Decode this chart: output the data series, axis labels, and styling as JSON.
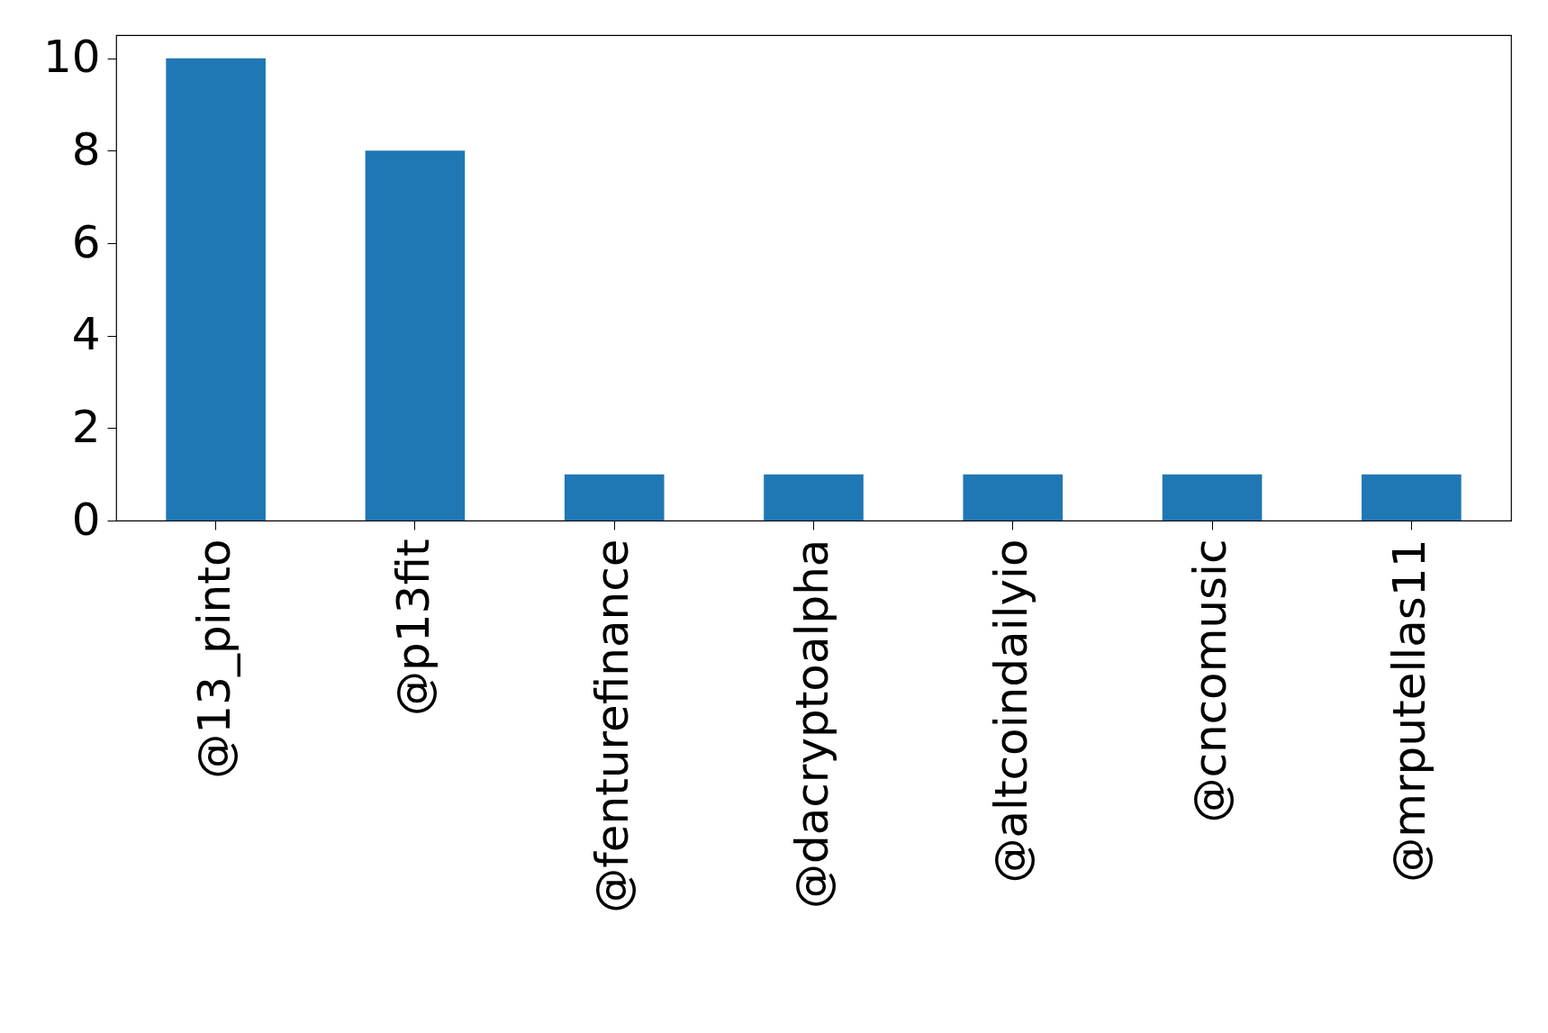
{
  "chart_data": {
    "type": "bar",
    "categories": [
      "@13_pinto",
      "@p13fit",
      "@fenturefinance",
      "@dacryptoalpha",
      "@altcoindailyio",
      "@cncomusic",
      "@mrputellas11"
    ],
    "values": [
      10,
      8,
      1,
      1,
      1,
      1,
      1
    ],
    "color": "#1f77b4",
    "ylim": [
      0,
      10.5
    ],
    "yticks": [
      0,
      2,
      4,
      6,
      8,
      10
    ],
    "grid": false
  }
}
